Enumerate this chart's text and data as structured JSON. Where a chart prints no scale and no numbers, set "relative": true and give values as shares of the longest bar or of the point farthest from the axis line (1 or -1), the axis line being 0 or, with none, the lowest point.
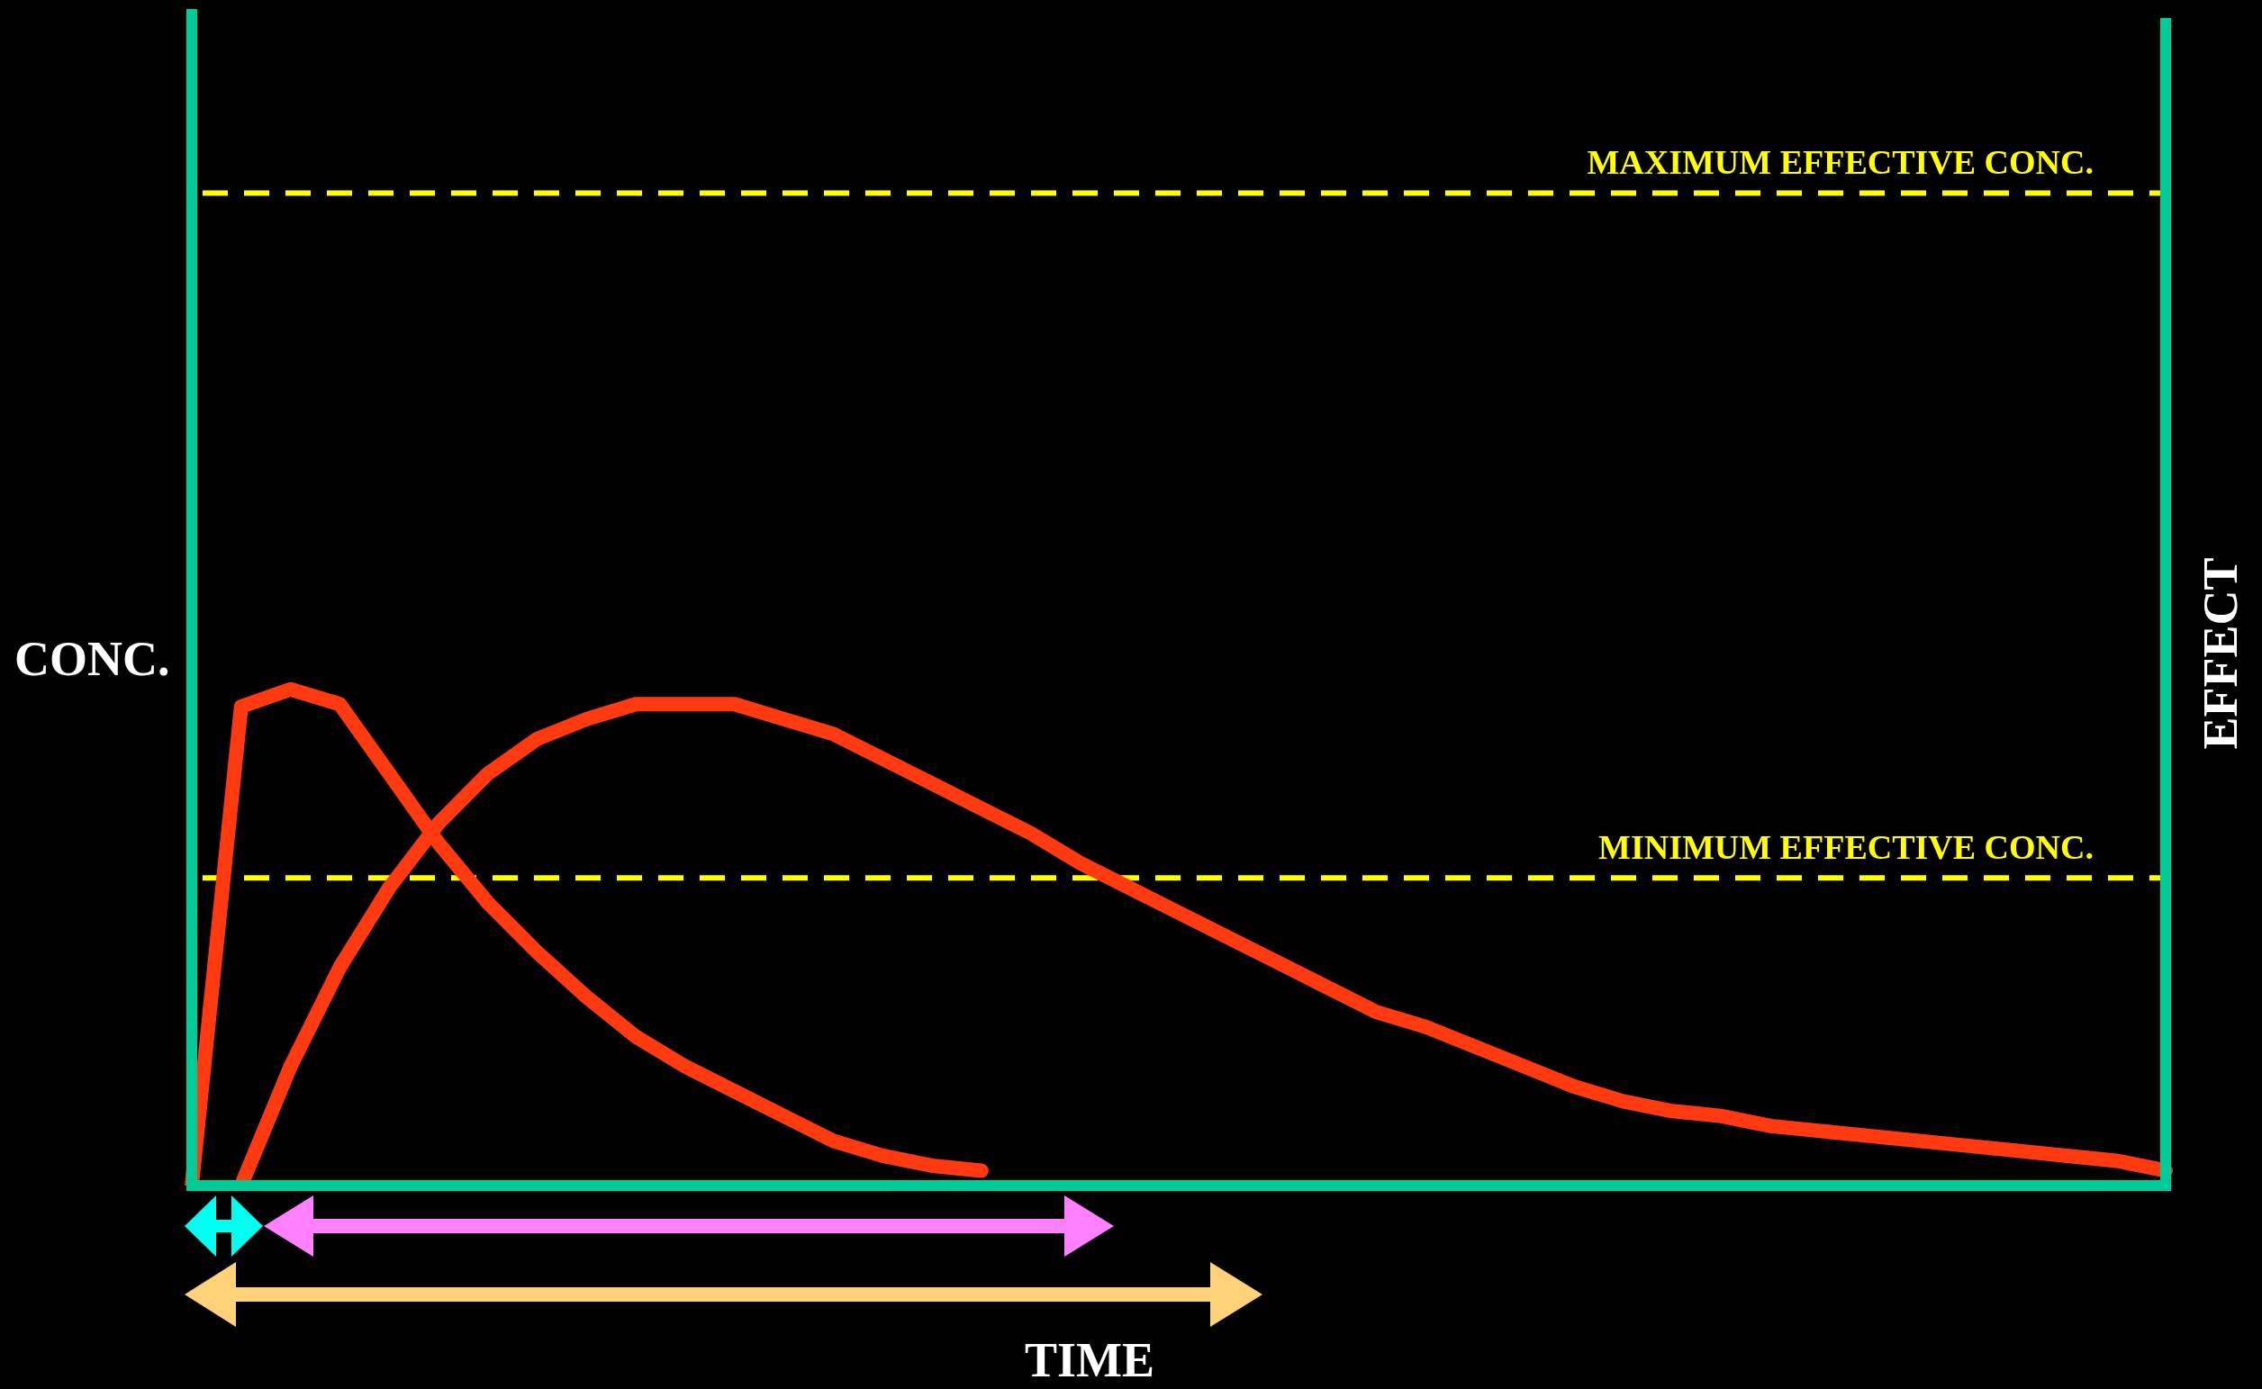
{
  "chart_data": {
    "type": "line",
    "relative": true,
    "xlabel": "TIME",
    "ylabel": "CONC.",
    "y2label": "EFFECT",
    "legend": false,
    "marker": "none",
    "line_style": "solid",
    "categories": [
      null,
      null,
      null,
      null,
      null,
      null,
      null,
      null,
      null,
      null,
      null,
      null,
      null,
      null,
      null,
      null,
      null,
      null,
      null,
      null,
      null,
      null,
      null,
      null,
      null,
      null,
      null,
      null,
      null,
      null,
      null,
      null,
      null,
      null,
      null,
      null,
      null,
      null,
      null,
      null,
      null
    ],
    "series": [
      {
        "color": "#ff3a10",
        "values": [
          0,
          0.965,
          1.0,
          0.97,
          0.83,
          0.69,
          0.57,
          0.47,
          0.38,
          0.3,
          0.24,
          0.19,
          0.14,
          0.09,
          0.06,
          0.04,
          0.03,
          null,
          null,
          null,
          null,
          null,
          null,
          null,
          null,
          null,
          null,
          null,
          null,
          null,
          null,
          null,
          null,
          null,
          null,
          null,
          null,
          null,
          null,
          null,
          null
        ]
      },
      {
        "color": "#ff3a10",
        "values": [
          null,
          0,
          0.24,
          0.44,
          0.6,
          0.73,
          0.83,
          0.9,
          0.94,
          0.97,
          0.97,
          0.97,
          0.94,
          0.91,
          0.86,
          0.81,
          0.76,
          0.71,
          0.65,
          0.6,
          0.55,
          0.5,
          0.45,
          0.4,
          0.35,
          0.32,
          0.28,
          0.24,
          0.2,
          0.17,
          0.15,
          0.14,
          0.12,
          0.11,
          0.1,
          0.09,
          0.08,
          0.07,
          0.06,
          0.05,
          0.03
        ]
      }
    ],
    "ref_lines": [
      {
        "axis": "y",
        "value": 2.0,
        "label": "MAXIMUM EFFECTIVE CONC.",
        "color": "#ffff00",
        "line_style": "dashed"
      },
      {
        "axis": "y",
        "value": 0.62,
        "label": "MINIMUM EFFECTIVE CONC.",
        "color": "#ffff00",
        "line_style": "dashed"
      }
    ]
  }
}
